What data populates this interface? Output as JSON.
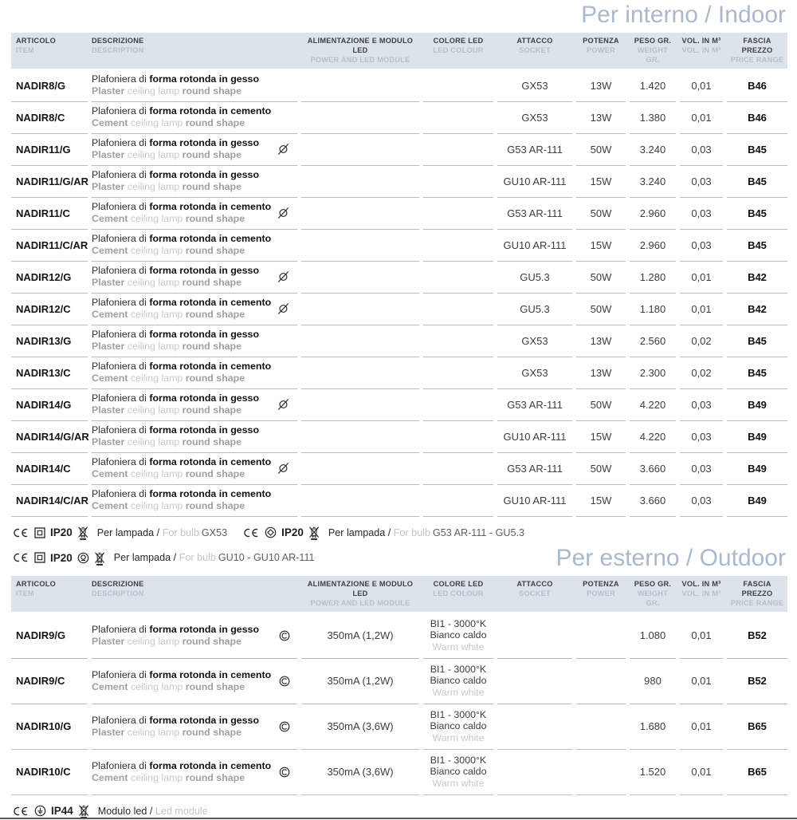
{
  "colors": {
    "title": "#aab9cb",
    "header_bg": "#dde3ea",
    "row_line": "#b7bbbf"
  },
  "page": {
    "indoor_title": "Per interno / Indoor",
    "outdoor_title": "Per esterno / Outdoor"
  },
  "table_header": {
    "columns": [
      {
        "it": "ARTICOLO",
        "en": "ITEM"
      },
      {
        "it": "DESCRIZIONE",
        "en": "DESCRIPTION"
      },
      {
        "it": "ALIMENTAZIONE E MODULO LED",
        "en": "POWER AND LED MODULE"
      },
      {
        "it": "COLORE LED",
        "en": "LED COLOUR"
      },
      {
        "it": "ATTACCO",
        "en": "SOCKET"
      },
      {
        "it": "POTENZA",
        "en": "POWER"
      },
      {
        "it": "PESO GR.",
        "en": "WEIGHT GR."
      },
      {
        "it": "VOL. IN M³",
        "en": "VOL. IN M³"
      },
      {
        "it": "FASCIA PREZZO",
        "en": "PRICE RANGE"
      }
    ]
  },
  "indoor_rows": [
    {
      "articolo": "NADIR8/G",
      "desc_it_regular": "Plafoniera di ",
      "desc_it_bold": "forma rotonda in gesso",
      "desc_en_material": "Plaster",
      "desc_en_regular": " ceiling lamp ",
      "desc_en_bold": "round shape",
      "desc_icon": null,
      "attacco": "GX53",
      "potenza": "13W",
      "peso": "1.420",
      "vol": "0,01",
      "fascia": "B46"
    },
    {
      "articolo": "NADIR8/C",
      "desc_it_regular": "Plafoniera di ",
      "desc_it_bold": "forma rotonda in cemento",
      "desc_en_material": "Cement",
      "desc_en_regular": " ceiling lamp ",
      "desc_en_bold": "round shape",
      "desc_icon": null,
      "attacco": "GX53",
      "potenza": "13W",
      "peso": "1.380",
      "vol": "0,01",
      "fascia": "B46"
    },
    {
      "articolo": "NADIR11/G",
      "desc_it_regular": "Plafoniera di ",
      "desc_it_bold": "forma rotonda in gesso",
      "desc_en_material": "Plaster",
      "desc_en_regular": " ceiling lamp ",
      "desc_en_bold": "round shape",
      "desc_icon": "dimmable-icon",
      "attacco": "G53 AR-111",
      "potenza": "50W",
      "peso": "3.240",
      "vol": "0,03",
      "fascia": "B45"
    },
    {
      "articolo": "NADIR11/G/AR",
      "desc_it_regular": "Plafoniera di ",
      "desc_it_bold": "forma rotonda in gesso",
      "desc_en_material": "Plaster",
      "desc_en_regular": " ceiling lamp ",
      "desc_en_bold": "round shape",
      "desc_icon": null,
      "attacco": "GU10 AR-111",
      "potenza": "15W",
      "peso": "3.240",
      "vol": "0,03",
      "fascia": "B45"
    },
    {
      "articolo": "NADIR11/C",
      "desc_it_regular": "Plafoniera di ",
      "desc_it_bold": "forma rotonda in cemento",
      "desc_en_material": "Cement",
      "desc_en_regular": " ceiling lamp ",
      "desc_en_bold": "round shape",
      "desc_icon": "dimmable-icon",
      "attacco": "G53 AR-111",
      "potenza": "50W",
      "peso": "2.960",
      "vol": "0,03",
      "fascia": "B45"
    },
    {
      "articolo": "NADIR11/C/AR",
      "desc_it_regular": "Plafoniera di ",
      "desc_it_bold": "forma rotonda in cemento",
      "desc_en_material": "Cement",
      "desc_en_regular": " ceiling lamp ",
      "desc_en_bold": "round shape",
      "desc_icon": null,
      "attacco": "GU10 AR-111",
      "potenza": "15W",
      "peso": "2.960",
      "vol": "0,03",
      "fascia": "B45"
    },
    {
      "articolo": "NADIR12/G",
      "desc_it_regular": "Plafoniera di ",
      "desc_it_bold": "forma rotonda in gesso",
      "desc_en_material": "Plaster",
      "desc_en_regular": " ceiling lamp ",
      "desc_en_bold": "round shape",
      "desc_icon": "dimmable-icon",
      "attacco": "GU5.3",
      "potenza": "50W",
      "peso": "1.280",
      "vol": "0,01",
      "fascia": "B42"
    },
    {
      "articolo": "NADIR12/C",
      "desc_it_regular": "Plafoniera di ",
      "desc_it_bold": "forma rotonda in cemento",
      "desc_en_material": "Cement",
      "desc_en_regular": " ceiling lamp ",
      "desc_en_bold": "round shape",
      "desc_icon": "dimmable-icon",
      "attacco": "GU5.3",
      "potenza": "50W",
      "peso": "1.180",
      "vol": "0,01",
      "fascia": "B42"
    },
    {
      "articolo": "NADIR13/G",
      "desc_it_regular": "Plafoniera di ",
      "desc_it_bold": "forma rotonda in gesso",
      "desc_en_material": "Plaster",
      "desc_en_regular": " ceiling lamp ",
      "desc_en_bold": "round shape",
      "desc_icon": null,
      "attacco": "GX53",
      "potenza": "13W",
      "peso": "2.560",
      "vol": "0,02",
      "fascia": "B45"
    },
    {
      "articolo": "NADIR13/C",
      "desc_it_regular": "Plafoniera di ",
      "desc_it_bold": "forma rotonda in cemento",
      "desc_en_material": "Cement",
      "desc_en_regular": " ceiling lamp ",
      "desc_en_bold": "round shape",
      "desc_icon": null,
      "attacco": "GX53",
      "potenza": "13W",
      "peso": "2.300",
      "vol": "0,02",
      "fascia": "B45"
    },
    {
      "articolo": "NADIR14/G",
      "desc_it_regular": "Plafoniera di ",
      "desc_it_bold": "forma rotonda in gesso",
      "desc_en_material": "Plaster",
      "desc_en_regular": " ceiling lamp ",
      "desc_en_bold": "round shape",
      "desc_icon": "dimmable-icon",
      "attacco": "G53 AR-111",
      "potenza": "50W",
      "peso": "4.220",
      "vol": "0,03",
      "fascia": "B49"
    },
    {
      "articolo": "NADIR14/G/AR",
      "desc_it_regular": "Plafoniera di ",
      "desc_it_bold": "forma rotonda in gesso",
      "desc_en_material": "Plaster",
      "desc_en_regular": " ceiling lamp ",
      "desc_en_bold": "round shape",
      "desc_icon": null,
      "attacco": "GU10 AR-111",
      "potenza": "15W",
      "peso": "4.220",
      "vol": "0,03",
      "fascia": "B49"
    },
    {
      "articolo": "NADIR14/C",
      "desc_it_regular": "Plafoniera di ",
      "desc_it_bold": "forma rotonda in cemento",
      "desc_en_material": "Cement",
      "desc_en_regular": " ceiling lamp ",
      "desc_en_bold": "round shape",
      "desc_icon": "dimmable-icon",
      "attacco": "G53 AR-111",
      "potenza": "50W",
      "peso": "3.660",
      "vol": "0,03",
      "fascia": "B49"
    },
    {
      "articolo": "NADIR14/C/AR",
      "desc_it_regular": "Plafoniera di ",
      "desc_it_bold": "forma rotonda in cemento",
      "desc_en_material": "Cement",
      "desc_en_regular": " ceiling lamp ",
      "desc_en_bold": "round shape",
      "desc_icon": null,
      "attacco": "GU10 AR-111",
      "potenza": "15W",
      "peso": "3.660",
      "vol": "0,03",
      "fascia": "B49"
    }
  ],
  "outdoor_rows": [
    {
      "articolo": "NADIR9/G",
      "desc_it_regular": "Plafoniera di ",
      "desc_it_bold": "forma rotonda in gesso",
      "desc_en_material": "Plaster",
      "desc_en_regular": " ceiling lamp ",
      "desc_en_bold": "round shape",
      "desc_icon": "circled-c-icon",
      "alimentazione": "350mA (1,2W)",
      "colore_l1": "BI1 - 3000°K",
      "colore_l2": "Bianco caldo",
      "colore_l3": "Warm white",
      "peso": "1.080",
      "vol": "0,01",
      "fascia": "B52"
    },
    {
      "articolo": "NADIR9/C",
      "desc_it_regular": "Plafoniera di ",
      "desc_it_bold": "forma rotonda in cemento",
      "desc_en_material": "Cement",
      "desc_en_regular": " ceiling lamp ",
      "desc_en_bold": "round shape",
      "desc_icon": "circled-c-icon",
      "alimentazione": "350mA (1,2W)",
      "colore_l1": "BI1 - 3000°K",
      "colore_l2": "Bianco caldo",
      "colore_l3": "Warm white",
      "peso": "980",
      "vol": "0,01",
      "fascia": "B52"
    },
    {
      "articolo": "NADIR10/G",
      "desc_it_regular": "Plafoniera di ",
      "desc_it_bold": "forma rotonda in gesso",
      "desc_en_material": "Plaster",
      "desc_en_regular": " ceiling lamp ",
      "desc_en_bold": "round shape",
      "desc_icon": "circled-c-icon",
      "alimentazione": "350mA (3,6W)",
      "colore_l1": "BI1 - 3000°K",
      "colore_l2": "Bianco caldo",
      "colore_l3": "Warm white",
      "peso": "1.680",
      "vol": "0,01",
      "fascia": "B65"
    },
    {
      "articolo": "NADIR10/C",
      "desc_it_regular": "Plafoniera di ",
      "desc_it_bold": "forma rotonda in cemento",
      "desc_en_material": "Cement",
      "desc_en_regular": " ceiling lamp ",
      "desc_en_bold": "round shape",
      "desc_icon": "circled-c-icon",
      "alimentazione": "350mA (3,6W)",
      "colore_l1": "BI1 - 3000°K",
      "colore_l2": "Bianco caldo",
      "colore_l3": "Warm white",
      "peso": "1.520",
      "vol": "0,01",
      "fascia": "B65"
    }
  ],
  "notes_indoor": [
    {
      "icons": [
        "ce-icon",
        "class-ii-icon"
      ],
      "ip": "IP20",
      "icons_after": [
        "weee-icon"
      ],
      "label_it": "Per lampada",
      "sep": " / ",
      "label_en": "For bulb",
      "value": "GX53"
    },
    {
      "icons": [
        "ce-icon",
        "circle-diamond-icon"
      ],
      "ip": "IP20",
      "icons_after": [
        "weee-icon"
      ],
      "label_it": "Per lampada",
      "sep": " / ",
      "label_en": "For bulb",
      "value": "G53 AR-111 - GU5.3"
    },
    {
      "icons": [
        "ce-icon",
        "class-ii-icon"
      ],
      "ip": "IP20",
      "icons_after": [
        "lamp-shield-icon",
        "weee-icon"
      ],
      "label_it": "Per lampada",
      "sep": " / ",
      "label_en": "For bulb",
      "value": "GU10 - GU10 AR-111"
    }
  ],
  "note_outdoor": {
    "icons": [
      "ce-icon",
      "earth-icon"
    ],
    "ip": "IP44",
    "icons_after": [
      "weee-icon"
    ],
    "label_it": "Modulo led",
    "sep": " / ",
    "label_en": "Led module",
    "value": ""
  }
}
